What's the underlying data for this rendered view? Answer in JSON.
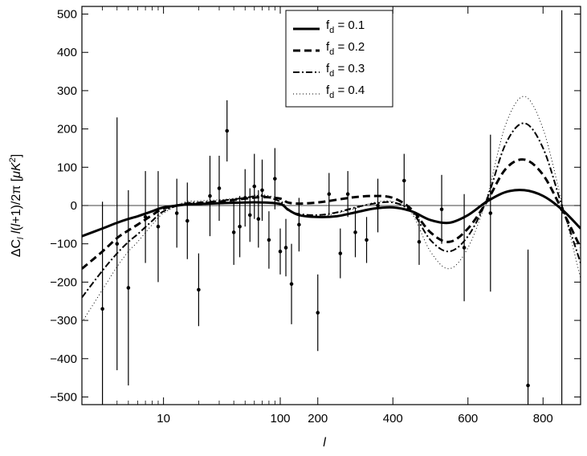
{
  "chart_data": {
    "type": "line",
    "xlabel": "l",
    "ylabel": "ΔC_l l(l+1)/2π  [μK^2]",
    "ylim": [
      -520,
      520
    ],
    "x_scale": "log below l≈100, linear above",
    "x_ticks": [
      {
        "x": 10,
        "label": "10"
      },
      {
        "x": 100,
        "label": "100"
      },
      {
        "x": 200,
        "label": "200"
      },
      {
        "x": 400,
        "label": "400"
      },
      {
        "x": 600,
        "label": "600"
      },
      {
        "x": 800,
        "label": "800"
      }
    ],
    "y_ticks": [
      500,
      400,
      300,
      200,
      100,
      0,
      -100,
      -200,
      -300,
      -400,
      -500
    ],
    "zero_line": true,
    "legend_position": "top-center",
    "series": [
      {
        "name": "f_d = 0.1",
        "style": "solid",
        "x": [
          2,
          3,
          4,
          5,
          6,
          8,
          10,
          15,
          20,
          30,
          50,
          70,
          100,
          120,
          150,
          200,
          250,
          300,
          350,
          400,
          450,
          500,
          550,
          600,
          650,
          700,
          750,
          800,
          850,
          900
        ],
        "y": [
          -80,
          -60,
          -45,
          -35,
          -28,
          -15,
          -5,
          2,
          4,
          6,
          8,
          8,
          4,
          -10,
          -25,
          -30,
          -28,
          -18,
          -8,
          -5,
          -15,
          -38,
          -45,
          -25,
          10,
          35,
          40,
          25,
          -10,
          -60
        ]
      },
      {
        "name": "f_d = 0.2",
        "style": "dashed",
        "x": [
          2,
          3,
          4,
          5,
          6,
          8,
          10,
          15,
          20,
          30,
          50,
          70,
          100,
          120,
          150,
          200,
          250,
          300,
          350,
          400,
          450,
          500,
          550,
          600,
          650,
          700,
          750,
          800,
          850,
          900
        ],
        "y": [
          -165,
          -120,
          -85,
          -65,
          -50,
          -25,
          -8,
          3,
          5,
          10,
          18,
          22,
          18,
          8,
          5,
          8,
          15,
          22,
          25,
          20,
          -10,
          -70,
          -95,
          -60,
          10,
          95,
          120,
          80,
          -10,
          -110
        ]
      },
      {
        "name": "f_d = 0.3",
        "style": "dash-dot",
        "x": [
          2,
          3,
          4,
          5,
          6,
          8,
          10,
          15,
          20,
          30,
          50,
          70,
          100,
          120,
          150,
          200,
          250,
          300,
          350,
          400,
          450,
          500,
          550,
          600,
          650,
          700,
          750,
          800,
          850,
          900
        ],
        "y": [
          -240,
          -170,
          -125,
          -95,
          -75,
          -40,
          -15,
          5,
          8,
          12,
          20,
          25,
          10,
          -12,
          -22,
          -25,
          -18,
          -5,
          5,
          8,
          -15,
          -90,
          -120,
          -80,
          15,
          160,
          215,
          150,
          0,
          -150
        ]
      },
      {
        "name": "f_d = 0.4",
        "style": "dotted",
        "x": [
          2,
          3,
          4,
          5,
          6,
          8,
          10,
          15,
          20,
          30,
          50,
          70,
          100,
          120,
          150,
          200,
          250,
          300,
          350,
          400,
          450,
          500,
          550,
          600,
          650,
          700,
          750,
          800,
          850,
          900
        ],
        "y": [
          -305,
          -220,
          -160,
          -120,
          -95,
          -50,
          -20,
          8,
          12,
          15,
          22,
          28,
          15,
          -10,
          -25,
          -30,
          -20,
          -8,
          8,
          10,
          -20,
          -120,
          -165,
          -110,
          20,
          210,
          285,
          200,
          10,
          -190
        ]
      }
    ],
    "data_points": [
      {
        "x": 3,
        "y": -270,
        "err": 280
      },
      {
        "x": 4,
        "y": -100,
        "err": 330
      },
      {
        "x": 5,
        "y": -215,
        "err": 255
      },
      {
        "x": 7,
        "y": -30,
        "err": 120
      },
      {
        "x": 9,
        "y": -55,
        "err": 145
      },
      {
        "x": 13,
        "y": -20,
        "err": 90
      },
      {
        "x": 16,
        "y": -40,
        "err": 100
      },
      {
        "x": 20,
        "y": -220,
        "err": 95
      },
      {
        "x": 25,
        "y": 25,
        "err": 105
      },
      {
        "x": 30,
        "y": 45,
        "err": 85
      },
      {
        "x": 35,
        "y": 195,
        "err": 80
      },
      {
        "x": 40,
        "y": -70,
        "err": 85
      },
      {
        "x": 45,
        "y": -55,
        "err": 80
      },
      {
        "x": 50,
        "y": 20,
        "err": 75
      },
      {
        "x": 55,
        "y": -25,
        "err": 70
      },
      {
        "x": 60,
        "y": 50,
        "err": 85
      },
      {
        "x": 65,
        "y": -35,
        "err": 75
      },
      {
        "x": 70,
        "y": 40,
        "err": 80
      },
      {
        "x": 80,
        "y": -90,
        "err": 75
      },
      {
        "x": 90,
        "y": 70,
        "err": 80
      },
      {
        "x": 100,
        "y": -120,
        "err": 60
      },
      {
        "x": 115,
        "y": -110,
        "err": 75
      },
      {
        "x": 130,
        "y": -205,
        "err": 105
      },
      {
        "x": 150,
        "y": -50,
        "err": 70
      },
      {
        "x": 200,
        "y": -280,
        "err": 100
      },
      {
        "x": 230,
        "y": 30,
        "err": 55
      },
      {
        "x": 260,
        "y": -125,
        "err": 65
      },
      {
        "x": 280,
        "y": 30,
        "err": 60
      },
      {
        "x": 300,
        "y": -70,
        "err": 65
      },
      {
        "x": 330,
        "y": -90,
        "err": 60
      },
      {
        "x": 360,
        "y": 0,
        "err": 70
      },
      {
        "x": 430,
        "y": 65,
        "err": 70
      },
      {
        "x": 470,
        "y": -95,
        "err": 60
      },
      {
        "x": 530,
        "y": -10,
        "err": 90
      },
      {
        "x": 590,
        "y": -110,
        "err": 140
      },
      {
        "x": 660,
        "y": -20,
        "err": 205
      },
      {
        "x": 760,
        "y": -470,
        "err": 355
      },
      {
        "x": 850,
        "y": -10,
        "err": 520
      }
    ]
  }
}
